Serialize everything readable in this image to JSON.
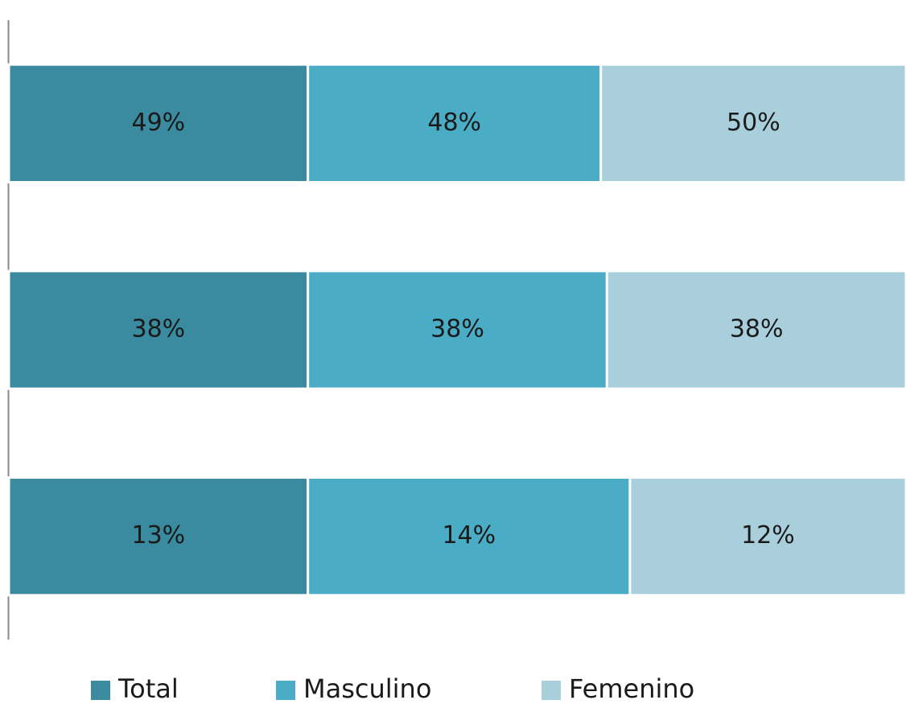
{
  "chart_data": {
    "type": "stacked_bar_100",
    "orientation": "horizontal",
    "categories": [
      null,
      null,
      null
    ],
    "series": [
      {
        "name": "Total",
        "color": "#3a8ba0",
        "values": [
          49,
          38,
          13
        ],
        "value_labels": [
          "49%",
          "38%",
          "13%"
        ]
      },
      {
        "name": "Masculino",
        "color": "#4bacc6",
        "values": [
          48,
          38,
          14
        ],
        "value_labels": [
          "48%",
          "38%",
          "14%"
        ]
      },
      {
        "name": "Femenino",
        "color": "#a9cfdc",
        "values": [
          50,
          38,
          12
        ],
        "value_labels": [
          "50%",
          "38%",
          "12%"
        ]
      }
    ],
    "legend": "bottom"
  }
}
